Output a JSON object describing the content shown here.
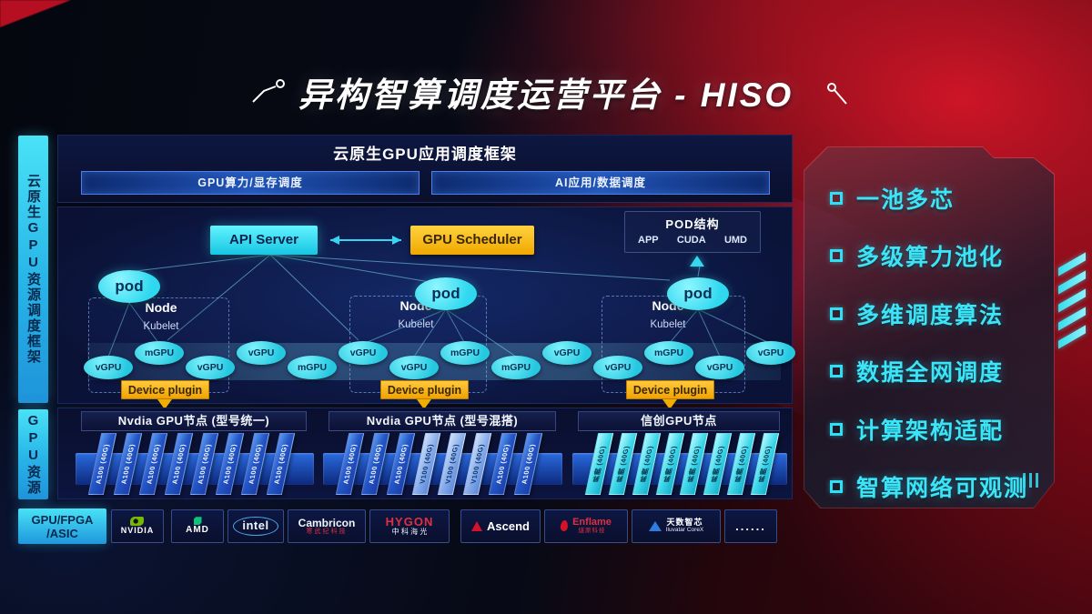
{
  "title": "异构智算调度运营平台 - HISO",
  "rails": {
    "rail1": "云原生GPU资源调度框架",
    "rail2": "GPU资源"
  },
  "framework": {
    "title": "云原生GPU应用调度框架",
    "bars": [
      "GPU算力/显存调度",
      "AI应用/数据调度"
    ]
  },
  "scheduler": {
    "api_server": "API Server",
    "gpu_scheduler": "GPU Scheduler",
    "pod_box": {
      "title": "POD结构",
      "items": [
        "APP",
        "CUDA",
        "UMD"
      ]
    },
    "nodes": [
      {
        "label": "Node",
        "sublabel": "Kubelet",
        "pod": "pod",
        "device_plugin": "Device plugin"
      },
      {
        "label": "Node",
        "sublabel": "Kubelet",
        "pod": "pod",
        "device_plugin": "Device plugin"
      },
      {
        "label": "Node",
        "sublabel": "Kubelet",
        "pod": "pod",
        "device_plugin": "Device plugin"
      }
    ],
    "gpu_ellipses": [
      {
        "label": "vGPU",
        "row": "lower"
      },
      {
        "label": "mGPU",
        "row": "upper"
      },
      {
        "label": "vGPU",
        "row": "lower"
      },
      {
        "label": "vGPU",
        "row": "upper"
      },
      {
        "label": "mGPU",
        "row": "lower"
      },
      {
        "label": "vGPU",
        "row": "upper"
      },
      {
        "label": "vGPU",
        "row": "lower"
      },
      {
        "label": "mGPU",
        "row": "upper"
      },
      {
        "label": "mGPU",
        "row": "lower"
      },
      {
        "label": "vGPU",
        "row": "upper"
      },
      {
        "label": "vGPU",
        "row": "lower"
      },
      {
        "label": "mGPU",
        "row": "upper"
      },
      {
        "label": "vGPU",
        "row": "lower"
      },
      {
        "label": "vGPU",
        "row": "upper"
      }
    ]
  },
  "gpu_nodes": [
    {
      "title": "Nvdia GPU节点 (型号统一)",
      "cards": [
        {
          "label": "A100 (40G)",
          "variant": "blue"
        },
        {
          "label": "A100 (40G)",
          "variant": "blue"
        },
        {
          "label": "A100 (40G)",
          "variant": "blue"
        },
        {
          "label": "A100 (40G)",
          "variant": "blue"
        },
        {
          "label": "A100 (40G)",
          "variant": "blue"
        },
        {
          "label": "A100 (40G)",
          "variant": "blue"
        },
        {
          "label": "A100 (40G)",
          "variant": "blue"
        },
        {
          "label": "A100 (40G)",
          "variant": "blue"
        }
      ]
    },
    {
      "title": "Nvdia GPU节点 (型号混搭)",
      "cards": [
        {
          "label": "A100 (40G)",
          "variant": "blue"
        },
        {
          "label": "A100 (40G)",
          "variant": "blue"
        },
        {
          "label": "A100 (40G)",
          "variant": "blue"
        },
        {
          "label": "V100 (40G)",
          "variant": "light"
        },
        {
          "label": "V100 (40G)",
          "variant": "light"
        },
        {
          "label": "V100 (40G)",
          "variant": "light"
        },
        {
          "label": "A100 (40G)",
          "variant": "blue"
        },
        {
          "label": "A100 (40G)",
          "variant": "blue"
        }
      ]
    },
    {
      "title": "信创GPU节点",
      "cards": [
        {
          "label": "昇腾 (40G)",
          "variant": "cyan"
        },
        {
          "label": "昇腾 (40G)",
          "variant": "cyan"
        },
        {
          "label": "昇腾 (40G)",
          "variant": "cyan"
        },
        {
          "label": "昇腾 (40G)",
          "variant": "cyan"
        },
        {
          "label": "昇腾 (40G)",
          "variant": "cyan"
        },
        {
          "label": "昇腾 (40G)",
          "variant": "cyan"
        },
        {
          "label": "昇腾 (40G)",
          "variant": "cyan"
        },
        {
          "label": "昇腾 (40G)",
          "variant": "cyan"
        }
      ]
    }
  ],
  "vendors": {
    "label_line1": "GPU/FPGA",
    "label_line2": "/ASIC",
    "logos": [
      {
        "type": "nvidia",
        "name": "NVIDIA"
      },
      {
        "type": "amd",
        "name": "AMD"
      },
      {
        "type": "intel",
        "name": "intel"
      },
      {
        "type": "cambricon",
        "name": "Cambricon",
        "sub": "寒武纪科技"
      },
      {
        "type": "hygon",
        "name": "HYGON",
        "sub": "中 科 海 光"
      },
      {
        "type": "ascend",
        "name": "Ascend"
      },
      {
        "type": "enflame",
        "name": "Enflame",
        "sub": "燧原科技"
      },
      {
        "type": "iluvatar",
        "name": "天数智芯",
        "sub": "Iluvatar CoreX"
      },
      {
        "type": "dots",
        "name": "......"
      }
    ]
  },
  "features": [
    "一池多芯",
    "多级算力池化",
    "多维调度算法",
    "数据全网调度",
    "计算架构适配",
    "智算网络可观测"
  ],
  "colors": {
    "accent_cyan": "#35E0F5",
    "amber": "#F5B301",
    "card_blue": "#2456C8",
    "card_light": "#84AAEA",
    "card_cyan": "#3ED7EA",
    "brand_red": "#C4102A",
    "panel_navy": "#0A1033",
    "nvidia_green": "#76B900"
  }
}
